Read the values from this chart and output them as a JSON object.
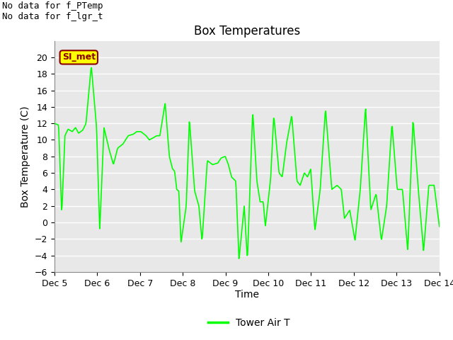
{
  "title": "Box Temperatures",
  "xlabel": "Time",
  "ylabel": "Box Temperature (C)",
  "ylim": [
    -6,
    22
  ],
  "yticks": [
    -6,
    -4,
    -2,
    0,
    2,
    4,
    6,
    8,
    10,
    12,
    14,
    16,
    18,
    20
  ],
  "line_color": "#00FF00",
  "line_width": 1.2,
  "plot_bg_color": "#E8E8E8",
  "grid_color": "#FFFFFF",
  "text_top_left_line1": "No data for f_PTemp",
  "text_top_left_line2": "No data for f_lgr_t",
  "legend_label": "Tower Air T",
  "box_label": "SI_met",
  "box_bg": "#FFFF00",
  "box_text_color": "#8B0000",
  "title_fontsize": 12,
  "axis_label_fontsize": 10,
  "tick_fontsize": 9,
  "nodata_fontsize": 9,
  "legend_fontsize": 10,
  "keypoints": [
    [
      0.0,
      12.0
    ],
    [
      0.04,
      11.8
    ],
    [
      0.07,
      1.0
    ],
    [
      0.1,
      10.5
    ],
    [
      0.13,
      11.3
    ],
    [
      0.17,
      11.0
    ],
    [
      0.2,
      11.5
    ],
    [
      0.23,
      10.8
    ],
    [
      0.27,
      11.2
    ],
    [
      0.3,
      12.0
    ],
    [
      0.35,
      19.0
    ],
    [
      0.4,
      11.5
    ],
    [
      0.43,
      -1.0
    ],
    [
      0.47,
      11.5
    ],
    [
      0.52,
      8.8
    ],
    [
      0.56,
      7.0
    ],
    [
      0.6,
      9.0
    ],
    [
      0.65,
      9.5
    ],
    [
      0.7,
      10.5
    ],
    [
      0.75,
      10.7
    ],
    [
      0.78,
      11.0
    ],
    [
      0.82,
      11.0
    ],
    [
      0.87,
      10.5
    ],
    [
      0.9,
      10.0
    ],
    [
      0.93,
      10.2
    ],
    [
      0.97,
      10.5
    ],
    [
      1.0,
      10.5
    ],
    [
      1.05,
      14.5
    ],
    [
      1.09,
      8.0
    ],
    [
      1.12,
      6.5
    ],
    [
      1.14,
      6.2
    ],
    [
      1.16,
      4.0
    ],
    [
      1.18,
      3.8
    ],
    [
      1.2,
      -2.5
    ],
    [
      1.25,
      2.0
    ],
    [
      1.28,
      12.5
    ],
    [
      1.33,
      3.8
    ],
    [
      1.37,
      2.0
    ],
    [
      1.4,
      -2.3
    ],
    [
      1.45,
      7.5
    ],
    [
      1.5,
      7.0
    ],
    [
      1.55,
      7.2
    ],
    [
      1.58,
      7.8
    ],
    [
      1.62,
      8.0
    ],
    [
      1.65,
      7.0
    ],
    [
      1.68,
      5.5
    ],
    [
      1.72,
      5.0
    ],
    [
      1.75,
      -4.5
    ],
    [
      1.8,
      2.0
    ],
    [
      1.83,
      -4.6
    ],
    [
      1.88,
      13.5
    ],
    [
      1.92,
      5.0
    ],
    [
      1.95,
      2.5
    ],
    [
      1.98,
      2.5
    ],
    [
      2.0,
      -0.5
    ],
    [
      2.05,
      5.3
    ],
    [
      2.08,
      13.0
    ],
    [
      2.13,
      6.0
    ],
    [
      2.16,
      5.5
    ],
    [
      2.2,
      9.5
    ],
    [
      2.25,
      13.0
    ],
    [
      2.3,
      5.0
    ],
    [
      2.33,
      4.5
    ],
    [
      2.37,
      6.0
    ],
    [
      2.4,
      5.5
    ],
    [
      2.43,
      6.5
    ],
    [
      2.47,
      -1.0
    ],
    [
      2.52,
      4.0
    ],
    [
      2.57,
      13.8
    ],
    [
      2.63,
      4.0
    ],
    [
      2.68,
      4.5
    ],
    [
      2.72,
      4.0
    ],
    [
      2.75,
      0.5
    ],
    [
      2.8,
      1.5
    ],
    [
      2.85,
      -2.2
    ],
    [
      2.9,
      4.0
    ],
    [
      2.95,
      14.0
    ],
    [
      3.0,
      1.5
    ],
    [
      3.05,
      3.5
    ],
    [
      3.1,
      -2.2
    ],
    [
      3.15,
      2.0
    ],
    [
      3.2,
      12.0
    ],
    [
      3.25,
      4.0
    ],
    [
      3.3,
      4.0
    ],
    [
      3.35,
      -3.5
    ],
    [
      3.4,
      12.5
    ],
    [
      3.45,
      4.0
    ],
    [
      3.5,
      -3.5
    ],
    [
      3.55,
      4.5
    ],
    [
      3.6,
      4.5
    ],
    [
      3.65,
      -0.5
    ]
  ]
}
